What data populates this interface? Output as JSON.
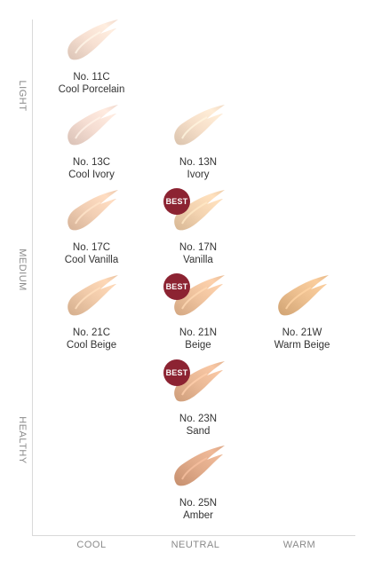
{
  "rows": [
    {
      "key": "light",
      "label": "LIGHT"
    },
    {
      "key": "medium",
      "label": "MEDIUM"
    },
    {
      "key": "healthy",
      "label": "HEALTHY"
    }
  ],
  "columns": [
    {
      "key": "cool",
      "label": "COOL"
    },
    {
      "key": "neutral",
      "label": "NEUTRAL"
    },
    {
      "key": "warm",
      "label": "WARM"
    }
  ],
  "best_label": "BEST",
  "shades": [
    {
      "code": "No. 11C",
      "name": "Cool Porcelain",
      "color": "#f7e0d2",
      "best": false
    },
    {
      "code": "No. 13C",
      "name": "Cool Ivory",
      "color": "#f5ddd2",
      "best": false
    },
    {
      "code": "No. 13N",
      "name": "Ivory",
      "color": "#f6dfc9",
      "best": false
    },
    {
      "code": "No. 17C",
      "name": "Cool Vanilla",
      "color": "#f2cfb4",
      "best": false
    },
    {
      "code": "No. 17N",
      "name": "Vanilla",
      "color": "#f3d3b0",
      "best": true
    },
    {
      "code": "No. 21C",
      "name": "Cool Beige",
      "color": "#f0caa9",
      "best": false
    },
    {
      "code": "No. 21N",
      "name": "Beige",
      "color": "#efc39e",
      "best": true
    },
    {
      "code": "No. 21W",
      "name": "Warm Beige",
      "color": "#ecbf8f",
      "best": false
    },
    {
      "code": "No. 23N",
      "name": "Sand",
      "color": "#eab996",
      "best": true
    },
    {
      "code": "No. 25N",
      "name": "Amber",
      "color": "#e1ab8a",
      "best": false
    }
  ]
}
